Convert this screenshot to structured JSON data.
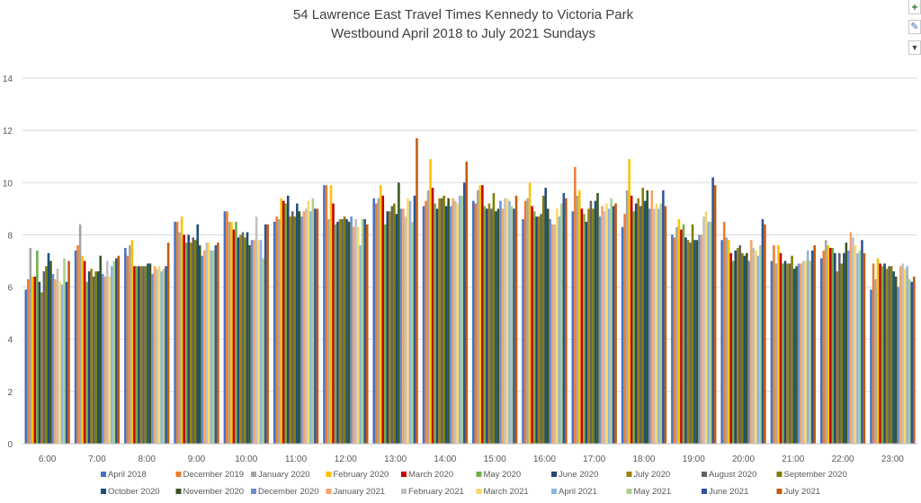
{
  "chart_data": {
    "type": "bar",
    "title": "54 Lawrence East Travel Times Kennedy to Victoria Park",
    "subtitle": "Westbound April 2018 to July 2021 Sundays",
    "categories": [
      "6:00",
      "7:00",
      "8:00",
      "9:00",
      "10:00",
      "11:00",
      "12:00",
      "13:00",
      "14:00",
      "15:00",
      "16:00",
      "17:00",
      "18:00",
      "19:00",
      "20:00",
      "21:00",
      "22:00",
      "23:00"
    ],
    "ylim": [
      0,
      14
    ],
    "yticks": [
      0,
      2,
      4,
      6,
      8,
      10,
      12,
      14
    ],
    "grid": true,
    "legend_position": "bottom",
    "series": [
      {
        "name": "April 2018",
        "color": "#4472c4",
        "values": [
          5.9,
          7.4,
          7.5,
          8.5,
          8.9,
          8.5,
          9.9,
          9.4,
          9.1,
          9.3,
          8.6,
          8.9,
          8.3,
          8.0,
          7.8,
          7.0,
          7.1,
          5.9
        ]
      },
      {
        "name": "December 2019",
        "color": "#ed7d31",
        "values": [
          6.3,
          7.6,
          7.2,
          8.5,
          8.9,
          8.7,
          9.9,
          9.2,
          9.3,
          9.2,
          9.3,
          10.6,
          8.8,
          7.9,
          8.5,
          7.6,
          7.4,
          6.9
        ]
      },
      {
        "name": "January 2020",
        "color": "#a5a5a5",
        "values": [
          7.5,
          8.4,
          7.6,
          8.1,
          8.5,
          8.6,
          8.6,
          9.4,
          9.7,
          9.7,
          9.4,
          9.5,
          9.7,
          8.3,
          7.9,
          6.9,
          7.8,
          6.3
        ]
      },
      {
        "name": "February 2020",
        "color": "#ffc000",
        "values": [
          6.4,
          7.2,
          7.8,
          8.7,
          8.5,
          9.4,
          9.9,
          9.9,
          10.9,
          9.9,
          10.0,
          9.7,
          10.9,
          8.6,
          7.8,
          7.6,
          7.6,
          7.1
        ]
      },
      {
        "name": "March 2020",
        "color": "#c00000",
        "values": [
          6.4,
          7.0,
          6.8,
          8.0,
          8.2,
          9.3,
          9.2,
          9.5,
          9.8,
          9.9,
          9.1,
          9.0,
          9.5,
          8.2,
          7.3,
          7.3,
          7.5,
          6.9
        ]
      },
      {
        "name": "May 2020",
        "color": "#70ad47",
        "values": [
          7.4,
          6.2,
          6.8,
          7.7,
          8.5,
          9.2,
          8.4,
          8.4,
          9.2,
          9.1,
          8.9,
          8.8,
          8.9,
          8.4,
          7.0,
          6.9,
          7.5,
          6.8
        ]
      },
      {
        "name": "June 2020",
        "color": "#264478",
        "values": [
          6.2,
          6.6,
          6.8,
          8.0,
          7.9,
          9.5,
          8.5,
          8.9,
          9.0,
          9.0,
          8.7,
          8.5,
          9.2,
          7.9,
          7.4,
          7.0,
          7.3,
          6.9
        ]
      },
      {
        "name": "July 2020",
        "color": "#9e8010",
        "values": [
          5.8,
          6.7,
          6.8,
          7.7,
          8.0,
          8.7,
          8.6,
          8.9,
          9.4,
          9.2,
          8.7,
          9.0,
          9.4,
          7.8,
          7.5,
          6.9,
          6.6,
          6.7
        ]
      },
      {
        "name": "August 2020",
        "color": "#636363",
        "values": [
          6.6,
          6.4,
          6.8,
          7.9,
          8.1,
          8.9,
          8.6,
          9.1,
          9.4,
          9.0,
          8.8,
          9.3,
          9.1,
          7.7,
          7.6,
          6.9,
          7.3,
          6.8
        ]
      },
      {
        "name": "September 2020",
        "color": "#7f7f00",
        "values": [
          6.8,
          6.6,
          6.8,
          7.8,
          7.9,
          8.7,
          8.7,
          9.2,
          9.5,
          9.6,
          9.5,
          9.0,
          9.8,
          8.4,
          7.3,
          7.2,
          6.9,
          6.8
        ]
      },
      {
        "name": "October 2020",
        "color": "#1f4e79",
        "values": [
          7.3,
          6.6,
          6.9,
          8.4,
          8.1,
          9.2,
          8.6,
          8.8,
          9.1,
          8.9,
          9.8,
          9.3,
          9.3,
          7.8,
          7.2,
          6.7,
          7.3,
          6.6
        ]
      },
      {
        "name": "November 2020",
        "color": "#385723",
        "values": [
          7.0,
          7.2,
          6.9,
          7.6,
          7.6,
          8.9,
          8.5,
          10.0,
          9.4,
          9.0,
          9.0,
          9.6,
          9.7,
          7.8,
          7.3,
          6.8,
          7.7,
          6.4
        ]
      },
      {
        "name": "December 2020",
        "color": "#6a8fd4",
        "values": [
          6.5,
          6.5,
          6.5,
          7.2,
          7.8,
          8.7,
          8.7,
          9.0,
          9.1,
          9.3,
          8.6,
          8.7,
          9.0,
          8.0,
          7.0,
          6.9,
          7.4,
          6.0
        ]
      },
      {
        "name": "January 2021",
        "color": "#f4a36a",
        "values": [
          6.3,
          6.4,
          6.8,
          7.4,
          7.8,
          8.9,
          8.3,
          9.0,
          9.4,
          9.0,
          8.4,
          9.1,
          9.7,
          8.0,
          7.8,
          6.9,
          8.1,
          6.8
        ]
      },
      {
        "name": "February 2021",
        "color": "#c0c0c0",
        "values": [
          6.7,
          7.0,
          6.7,
          7.7,
          8.7,
          9.0,
          8.6,
          8.7,
          9.3,
          9.4,
          8.4,
          8.9,
          9.0,
          8.7,
          7.5,
          7.0,
          7.9,
          6.9
        ]
      },
      {
        "name": "March 2021",
        "color": "#ffd966",
        "values": [
          6.2,
          6.4,
          6.8,
          7.7,
          7.8,
          9.3,
          8.3,
          9.4,
          9.2,
          9.4,
          9.0,
          9.2,
          9.2,
          8.9,
          7.4,
          7.0,
          7.6,
          6.7
        ]
      },
      {
        "name": "April 2021",
        "color": "#8eb4e3",
        "values": [
          6.1,
          6.8,
          6.6,
          7.4,
          7.8,
          8.9,
          7.6,
          9.3,
          9.5,
          9.3,
          8.7,
          9.0,
          9.0,
          8.5,
          7.2,
          7.4,
          7.3,
          6.8
        ]
      },
      {
        "name": "May 2021",
        "color": "#a9d08e",
        "values": [
          7.1,
          7.0,
          6.7,
          7.4,
          7.1,
          9.4,
          8.6,
          8.5,
          9.5,
          9.1,
          9.2,
          9.4,
          9.2,
          8.5,
          7.6,
          7.0,
          7.4,
          6.3
        ]
      },
      {
        "name": "June 2021",
        "color": "#2f5597",
        "values": [
          6.2,
          7.1,
          6.8,
          7.6,
          8.4,
          9.0,
          8.6,
          9.5,
          10.0,
          9.0,
          9.6,
          9.1,
          9.7,
          10.2,
          8.6,
          7.4,
          7.8,
          6.2
        ]
      },
      {
        "name": "July 2021",
        "color": "#c55a11",
        "values": [
          7.0,
          7.2,
          7.7,
          7.7,
          8.4,
          9.0,
          8.4,
          11.7,
          10.8,
          9.5,
          9.4,
          9.2,
          9.1,
          9.9,
          8.4,
          7.6,
          7.3,
          6.4
        ]
      }
    ]
  },
  "toolbar": {
    "elements_icon": "plus-icon",
    "elements_glyph": "+",
    "styles_icon": "paintbrush-icon",
    "styles_glyph": "✎",
    "filter_icon": "filter-icon",
    "filter_glyph": "▼"
  }
}
